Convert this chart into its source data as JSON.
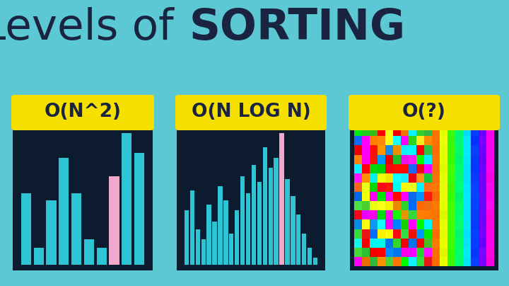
{
  "bg_color": "#5bc8d4",
  "title_color": "#1a2340",
  "panel_bg": "#0d1b2e",
  "label_bg": "#f5e000",
  "label_color": "#1a2340",
  "label1": "O(N^2)",
  "label2": "O(N LOG N)",
  "label3": "O(?)",
  "bar_color": "#2ec4d4",
  "highlight_color": "#f0a8cc",
  "bars1": [
    0.5,
    0.12,
    0.45,
    0.75,
    0.5,
    0.18,
    0.12,
    0.62,
    0.92,
    0.78
  ],
  "highlight1": 7,
  "bars2": [
    0.38,
    0.52,
    0.25,
    0.18,
    0.42,
    0.3,
    0.55,
    0.45,
    0.22,
    0.38,
    0.62,
    0.5,
    0.7,
    0.58,
    0.82,
    0.68,
    0.75,
    0.92,
    0.6,
    0.48,
    0.35,
    0.22,
    0.12,
    0.05
  ],
  "highlight2": 17,
  "noise_seed": 42
}
